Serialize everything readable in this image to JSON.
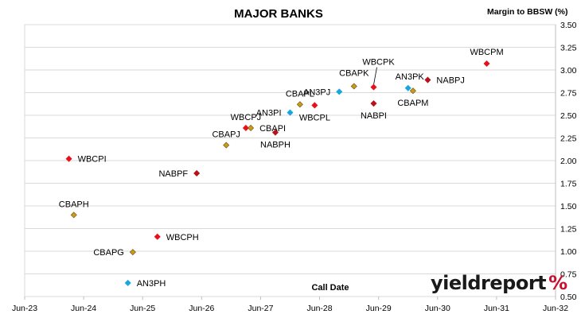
{
  "chart_data": {
    "type": "scatter",
    "title": "MAJOR BANKS",
    "xlabel": "Call Date",
    "ylabel": "Margin to BBSW (%)",
    "x_ticks": [
      "Jun-23",
      "Jun-24",
      "Jun-25",
      "Jun-26",
      "Jun-27",
      "Jun-28",
      "Jun-29",
      "Jun-30",
      "Jun-31",
      "Jun-32"
    ],
    "y_ticks": [
      "0.50",
      "0.75",
      "1.00",
      "1.25",
      "1.50",
      "1.75",
      "2.00",
      "2.25",
      "2.50",
      "2.75",
      "3.00",
      "3.25",
      "3.50"
    ],
    "xlim": [
      "2023-06",
      "2032-06"
    ],
    "ylim": [
      0.5,
      3.5
    ],
    "grid": "horizontal",
    "y_axis_side": "right",
    "points": [
      {
        "label": "WBCPI",
        "date": "2024-03",
        "y": 2.02,
        "color": "#e8101a",
        "label_pos": "right"
      },
      {
        "label": "CBAPH",
        "date": "2024-04",
        "y": 1.4,
        "color": "#c99a1e",
        "label_pos": "above"
      },
      {
        "label": "AN3PH",
        "date": "2025-03",
        "y": 0.65,
        "color": "#17a6e0",
        "label_pos": "right"
      },
      {
        "label": "CBAPG",
        "date": "2025-04",
        "y": 0.99,
        "color": "#c99a1e",
        "label_pos": "left"
      },
      {
        "label": "WBCPH",
        "date": "2025-09",
        "y": 1.16,
        "color": "#e8101a",
        "label_pos": "right"
      },
      {
        "label": "NABPF",
        "date": "2026-05",
        "y": 1.86,
        "color": "#b5121b",
        "label_pos": "left"
      },
      {
        "label": "CBAPJ",
        "date": "2026-11",
        "y": 2.17,
        "color": "#c99a1e",
        "label_pos": "above"
      },
      {
        "label": "WBCPJ",
        "date": "2027-03",
        "y": 2.36,
        "color": "#e8101a",
        "label_pos": "above"
      },
      {
        "label": "CBAPI",
        "date": "2027-04",
        "y": 2.36,
        "color": "#c99a1e",
        "label_pos": "right"
      },
      {
        "label": "NABPH",
        "date": "2027-09",
        "y": 2.31,
        "color": "#b5121b",
        "label_pos": "below"
      },
      {
        "label": "AN3PI",
        "date": "2027-12",
        "y": 2.53,
        "color": "#17a6e0",
        "label_pos": "left"
      },
      {
        "label": "CBAPL",
        "date": "2028-02",
        "y": 2.62,
        "color": "#c99a1e",
        "label_pos": "above"
      },
      {
        "label": "WBCPL",
        "date": "2028-05",
        "y": 2.61,
        "color": "#e8101a",
        "label_pos": "below"
      },
      {
        "label": "AN3PJ",
        "date": "2028-10",
        "y": 2.76,
        "color": "#17a6e0",
        "label_pos": "left"
      },
      {
        "label": "CBAPK",
        "date": "2029-01",
        "y": 2.82,
        "color": "#c99a1e",
        "label_pos": "above"
      },
      {
        "label": "WBCPK",
        "date": "2029-05",
        "y": 2.81,
        "color": "#e8101a",
        "label_pos": "above"
      },
      {
        "label": "NABPI",
        "date": "2029-05",
        "y": 2.63,
        "color": "#b5121b",
        "label_pos": "below"
      },
      {
        "label": "AN3PK",
        "date": "2029-12",
        "y": 2.8,
        "color": "#17a6e0",
        "label_pos": "above"
      },
      {
        "label": "CBAPM",
        "date": "2030-01",
        "y": 2.77,
        "color": "#c99a1e",
        "label_pos": "below"
      },
      {
        "label": "NABPJ",
        "date": "2030-04",
        "y": 2.89,
        "color": "#b5121b",
        "label_pos": "right"
      },
      {
        "label": "WBCPM",
        "date": "2031-04",
        "y": 3.07,
        "color": "#e8101a",
        "label_pos": "above"
      }
    ]
  },
  "branding": {
    "logo_text": "yieldreport",
    "logo_symbol": "%"
  }
}
